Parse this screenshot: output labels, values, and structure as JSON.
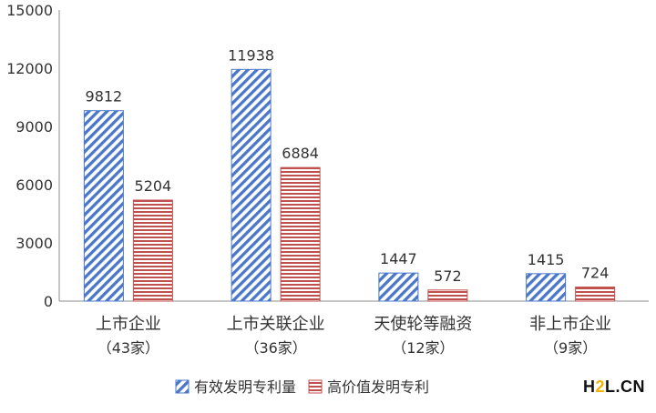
{
  "chart_data": {
    "type": "bar",
    "categories": [
      {
        "name": "上市企业",
        "sub": "（43家）"
      },
      {
        "name": "上市关联企业",
        "sub": "（36家）"
      },
      {
        "name": "天使轮等融资",
        "sub": "（12家）"
      },
      {
        "name": "非上市企业",
        "sub": "（9家）"
      }
    ],
    "series": [
      {
        "name": "有效发明专利量",
        "values": [
          9812,
          11938,
          1447,
          1415
        ],
        "color": "#4a77c9",
        "pattern": "diagonal-hatch"
      },
      {
        "name": "高价值发明专利",
        "values": [
          5204,
          6884,
          572,
          724
        ],
        "color": "#c0504d",
        "pattern": "horizontal-lines"
      }
    ],
    "ylim": [
      0,
      15000
    ],
    "yticks": [
      0,
      3000,
      6000,
      9000,
      12000,
      15000
    ],
    "data_labels": true,
    "legend_position": "bottom",
    "grid": false,
    "title": "",
    "xlabel": "",
    "ylabel": ""
  },
  "watermark": {
    "prefix": "H",
    "accent": "2",
    "suffix": "L.CN"
  }
}
